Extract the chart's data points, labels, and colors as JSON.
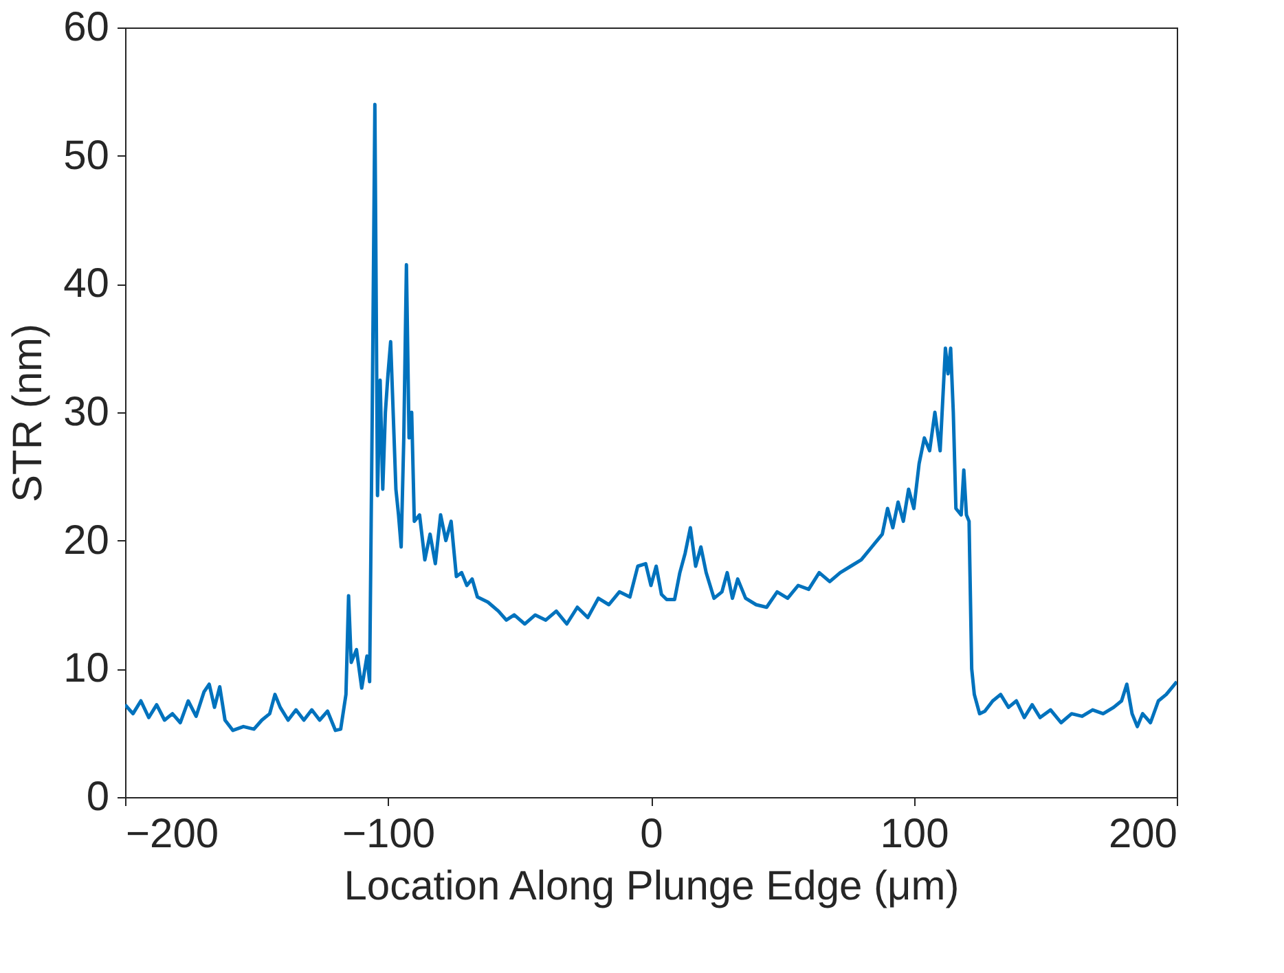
{
  "chart_data": {
    "type": "line",
    "xlabel": "Location Along Plunge Edge (μm)",
    "ylabel": "STR (nm)",
    "xlim": [
      -200,
      200
    ],
    "xticks": [
      -200,
      -100,
      0,
      100,
      200
    ],
    "ylim": [
      0,
      60
    ],
    "yticks": [
      0,
      10,
      20,
      30,
      40,
      50,
      60
    ],
    "grid": false,
    "marker": "none",
    "line_style": "solid",
    "series": [
      {
        "color": "#0072bd",
        "x": [
          -200,
          -197,
          -194,
          -191,
          -188,
          -185,
          -182,
          -179,
          -176,
          -173,
          -170,
          -168,
          -166,
          -164,
          -162,
          -159,
          -155,
          -151,
          -148,
          -145,
          -143,
          -141,
          -138,
          -135,
          -132,
          -129,
          -126,
          -123,
          -120,
          -118,
          -116,
          -115,
          -114,
          -112,
          -110,
          -108,
          -107,
          -106,
          -105,
          -104,
          -103,
          -102,
          -101,
          -100,
          -99,
          -97,
          -96,
          -95,
          -94,
          -93,
          -92,
          -91,
          -90,
          -88,
          -86,
          -84,
          -82,
          -80,
          -78,
          -76,
          -74,
          -72,
          -70,
          -68,
          -66,
          -62,
          -58,
          -55,
          -52,
          -48,
          -44,
          -40,
          -36,
          -32,
          -28,
          -24,
          -20,
          -16,
          -12,
          -8,
          -5,
          -2,
          0,
          2,
          4,
          6,
          9,
          11,
          13,
          15,
          17,
          19,
          21,
          24,
          27,
          29,
          31,
          33,
          36,
          40,
          44,
          48,
          52,
          56,
          60,
          64,
          68,
          72,
          76,
          80,
          84,
          88,
          90,
          92,
          94,
          96,
          98,
          100,
          102,
          104,
          106,
          108,
          110,
          112,
          113,
          114,
          115,
          116,
          118,
          119,
          120,
          121,
          122,
          123,
          125,
          127,
          130,
          133,
          136,
          139,
          142,
          145,
          148,
          152,
          156,
          160,
          164,
          168,
          172,
          176,
          179,
          181,
          183,
          185,
          187,
          190,
          193,
          196,
          198,
          200
        ],
        "values": [
          7.2,
          6.5,
          7.5,
          6.2,
          7.2,
          6.0,
          6.5,
          5.8,
          7.5,
          6.3,
          8.2,
          8.8,
          7.0,
          8.6,
          6.0,
          5.2,
          5.5,
          5.3,
          6.0,
          6.5,
          8.0,
          7.0,
          6.0,
          6.8,
          6.0,
          6.8,
          6.0,
          6.7,
          5.2,
          5.3,
          8.0,
          15.7,
          10.5,
          11.5,
          8.5,
          11,
          9,
          30,
          54,
          23.5,
          32.5,
          24,
          30,
          33,
          35.5,
          24,
          22,
          19.5,
          28,
          41.5,
          28,
          30,
          21.5,
          22,
          18.5,
          20.5,
          18.2,
          22,
          20,
          21.5,
          17.2,
          17.5,
          16.5,
          17,
          15.6,
          15.2,
          14.5,
          13.8,
          14.2,
          13.5,
          14.2,
          13.8,
          14.5,
          13.5,
          14.8,
          14,
          15.5,
          15,
          16,
          15.6,
          18,
          18.2,
          16.5,
          18,
          15.8,
          15.4,
          15.4,
          17.5,
          19,
          21,
          18,
          19.5,
          17.5,
          15.5,
          16,
          17.5,
          15.5,
          17,
          15.5,
          15,
          14.8,
          16,
          15.5,
          16.5,
          16.2,
          17.5,
          16.8,
          17.5,
          18,
          18.5,
          19.5,
          20.5,
          22.5,
          21,
          23,
          21.5,
          24,
          22.5,
          26,
          28,
          27,
          30,
          27,
          35,
          33,
          35,
          30,
          22.5,
          22,
          25.5,
          22,
          21.5,
          10,
          8,
          6.5,
          6.7,
          7.5,
          8,
          7,
          7.5,
          6.2,
          7.2,
          6.2,
          6.8,
          5.8,
          6.5,
          6.3,
          6.8,
          6.5,
          7,
          7.5,
          8.8,
          6.5,
          5.5,
          6.5,
          5.8,
          7.5,
          8,
          8.5,
          9
        ]
      }
    ]
  }
}
